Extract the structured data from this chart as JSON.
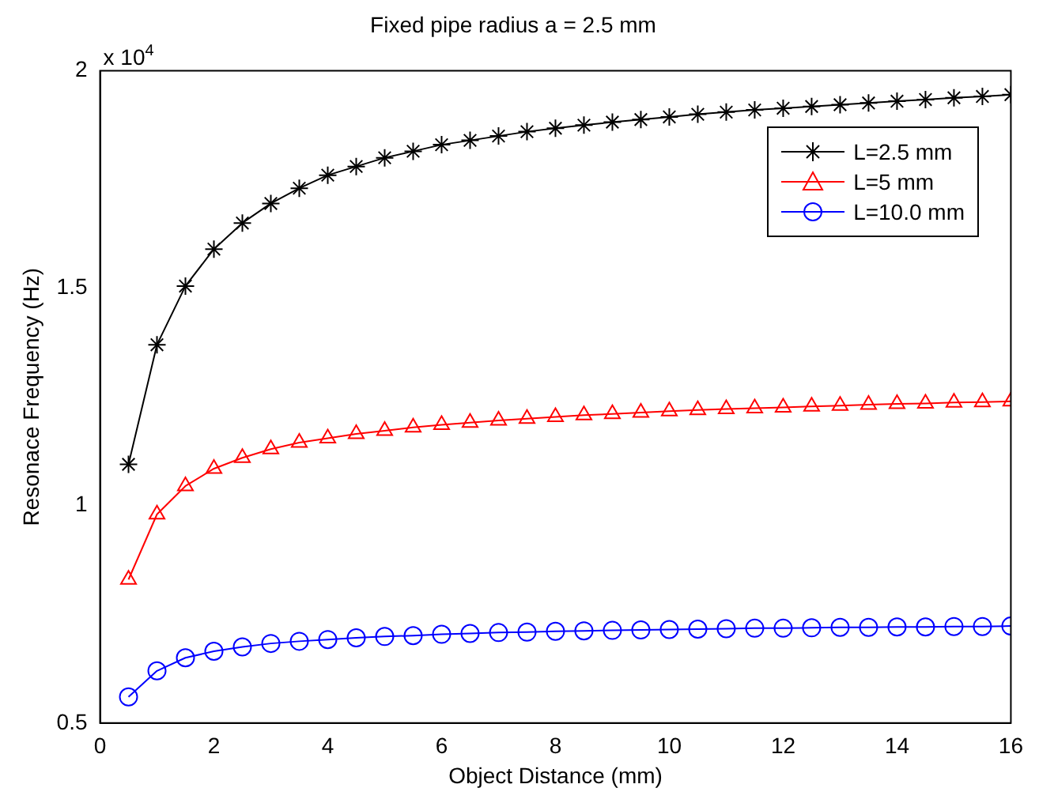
{
  "chart_data": {
    "type": "line",
    "title": "Fixed pipe radius a = 2.5 mm",
    "xlabel": "Object Distance (mm)",
    "ylabel": "Resonace Frequency (Hz)",
    "x": [
      0.5,
      1,
      1.5,
      2,
      2.5,
      3,
      3.5,
      4,
      4.5,
      5,
      5.5,
      6,
      6.5,
      7,
      7.5,
      8,
      8.5,
      9,
      9.5,
      10,
      10.5,
      11,
      11.5,
      12,
      12.5,
      13,
      13.5,
      14,
      14.5,
      15,
      15.5,
      16
    ],
    "series": [
      {
        "name": "L=2.5 mm",
        "color": "#000000",
        "marker": "cross",
        "values": [
          1.095,
          1.37,
          1.505,
          1.59,
          1.65,
          1.695,
          1.73,
          1.76,
          1.78,
          1.8,
          1.815,
          1.83,
          1.84,
          1.85,
          1.86,
          1.868,
          1.875,
          1.882,
          1.888,
          1.894,
          1.9,
          1.905,
          1.91,
          1.914,
          1.918,
          1.922,
          1.926,
          1.93,
          1.934,
          1.938,
          1.941,
          1.945
        ]
      },
      {
        "name": "L=5 mm",
        "color": "#ff0000",
        "marker": "triangle",
        "values": [
          0.83,
          0.98,
          1.045,
          1.085,
          1.11,
          1.13,
          1.145,
          1.155,
          1.165,
          1.172,
          1.18,
          1.186,
          1.191,
          1.196,
          1.2,
          1.204,
          1.208,
          1.211,
          1.214,
          1.217,
          1.22,
          1.222,
          1.224,
          1.226,
          1.228,
          1.23,
          1.232,
          1.234,
          1.235,
          1.237,
          1.238,
          1.24
        ]
      },
      {
        "name": "L=10.0 mm",
        "color": "#0000ff",
        "marker": "circle",
        "values": [
          0.56,
          0.62,
          0.65,
          0.665,
          0.675,
          0.683,
          0.688,
          0.692,
          0.696,
          0.699,
          0.701,
          0.704,
          0.706,
          0.708,
          0.709,
          0.711,
          0.712,
          0.713,
          0.714,
          0.715,
          0.716,
          0.717,
          0.718,
          0.718,
          0.719,
          0.72,
          0.72,
          0.721,
          0.721,
          0.722,
          0.722,
          0.723
        ]
      }
    ],
    "xlim": [
      0,
      16
    ],
    "xticks": [
      0,
      2,
      4,
      6,
      8,
      10,
      12,
      14,
      16
    ],
    "ylim": [
      0.5,
      2
    ],
    "yticks": [
      0.5,
      1,
      1.5,
      2
    ],
    "annotations": [
      "x 10$^{4}$"
    ],
    "grid": false,
    "legend": "top right",
    "line_style": "solid"
  }
}
